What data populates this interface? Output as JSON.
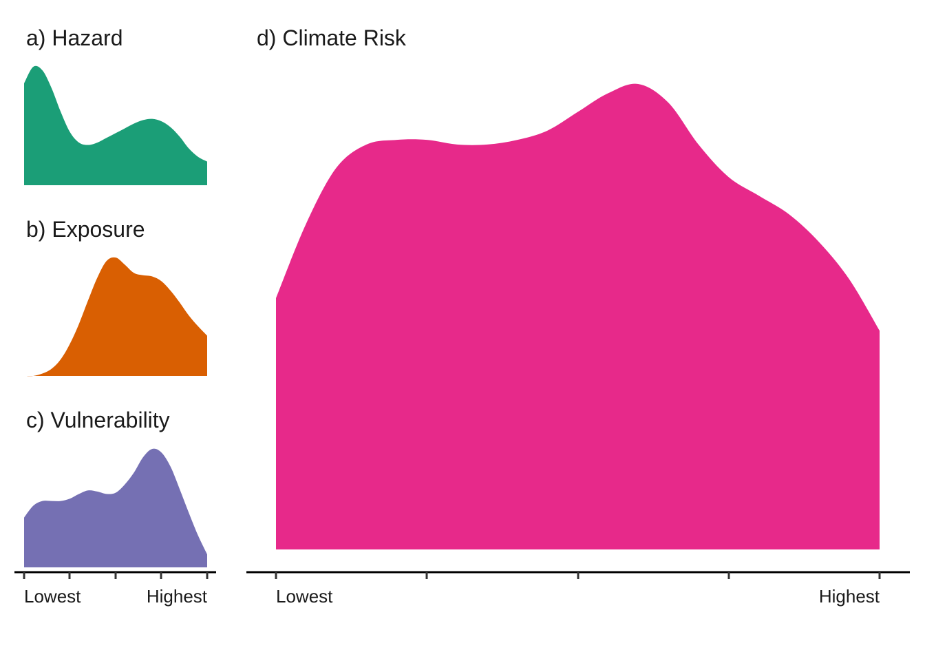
{
  "chart_data": [
    {
      "type": "area",
      "id": "hazard",
      "title": "a) Hazard",
      "color": "#1b9e77",
      "x": [
        0,
        0.05,
        0.1,
        0.15,
        0.2,
        0.25,
        0.3,
        0.35,
        0.4,
        0.45,
        0.5,
        0.55,
        0.6,
        0.65,
        0.7,
        0.75,
        0.8,
        0.85,
        0.9,
        0.95,
        1.0
      ],
      "y": [
        0.86,
        1.0,
        0.97,
        0.82,
        0.62,
        0.45,
        0.36,
        0.34,
        0.36,
        0.4,
        0.44,
        0.48,
        0.52,
        0.55,
        0.56,
        0.54,
        0.49,
        0.41,
        0.31,
        0.24,
        0.2
      ],
      "xlim": [
        0,
        1
      ],
      "ylim": [
        0,
        1
      ],
      "xlabel": "",
      "ylabel": "",
      "tick_labels": [],
      "grid": false
    },
    {
      "type": "area",
      "id": "exposure",
      "title": "b) Exposure",
      "color": "#d95f02",
      "x": [
        0,
        0.05,
        0.1,
        0.15,
        0.2,
        0.25,
        0.3,
        0.35,
        0.4,
        0.45,
        0.5,
        0.55,
        0.6,
        0.65,
        0.7,
        0.75,
        0.8,
        0.85,
        0.9,
        0.95,
        1.0
      ],
      "y": [
        0.0,
        0.0,
        0.02,
        0.06,
        0.14,
        0.27,
        0.44,
        0.64,
        0.83,
        0.97,
        1.0,
        0.94,
        0.87,
        0.85,
        0.84,
        0.8,
        0.72,
        0.62,
        0.51,
        0.42,
        0.34
      ],
      "xlim": [
        0,
        1
      ],
      "ylim": [
        0,
        1
      ],
      "xlabel": "",
      "ylabel": "",
      "tick_labels": [],
      "grid": false
    },
    {
      "type": "area",
      "id": "vulnerability",
      "title": "c) Vulnerability",
      "color": "#7570b3",
      "x": [
        0,
        0.05,
        0.1,
        0.15,
        0.2,
        0.25,
        0.3,
        0.35,
        0.4,
        0.45,
        0.5,
        0.55,
        0.6,
        0.65,
        0.7,
        0.75,
        0.8,
        0.85,
        0.9,
        0.95,
        1.0
      ],
      "y": [
        0.42,
        0.52,
        0.56,
        0.56,
        0.56,
        0.58,
        0.62,
        0.65,
        0.64,
        0.62,
        0.63,
        0.7,
        0.8,
        0.93,
        1.0,
        0.97,
        0.85,
        0.66,
        0.46,
        0.27,
        0.11
      ],
      "xlim": [
        0,
        1
      ],
      "ylim": [
        0,
        1
      ],
      "xlabel": "",
      "ylabel": "",
      "tick_labels": [
        "Lowest",
        "Highest"
      ],
      "grid": false
    },
    {
      "type": "area",
      "id": "climate-risk",
      "title": "d) Climate Risk",
      "color": "#e7298a",
      "x": [
        0,
        0.05,
        0.1,
        0.15,
        0.2,
        0.25,
        0.3,
        0.35,
        0.4,
        0.45,
        0.5,
        0.55,
        0.6,
        0.65,
        0.7,
        0.75,
        0.8,
        0.85,
        0.9,
        0.95,
        1.0
      ],
      "y": [
        0.54,
        0.7,
        0.82,
        0.87,
        0.88,
        0.88,
        0.87,
        0.87,
        0.88,
        0.9,
        0.94,
        0.98,
        1.0,
        0.96,
        0.87,
        0.8,
        0.76,
        0.72,
        0.66,
        0.58,
        0.47
      ],
      "xlim": [
        0,
        1
      ],
      "ylim": [
        0,
        1
      ],
      "xlabel": "",
      "ylabel": "",
      "tick_labels": [
        "Lowest",
        "Highest"
      ],
      "grid": false
    }
  ]
}
